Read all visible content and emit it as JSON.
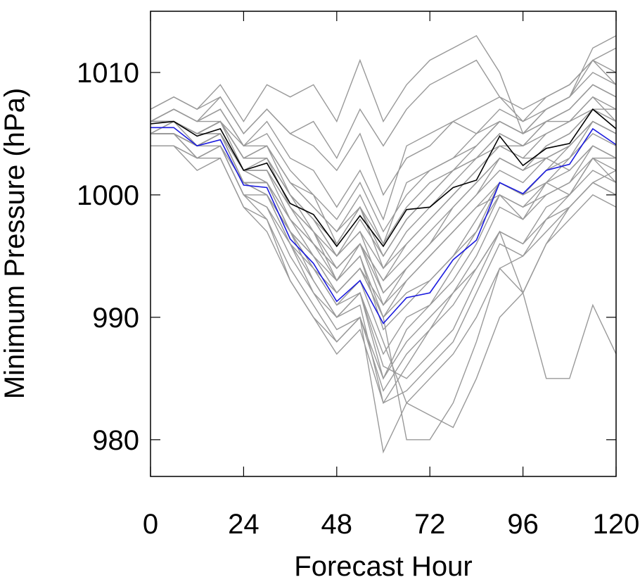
{
  "chart_data": {
    "type": "line",
    "title": "",
    "xlabel": "Forecast Hour",
    "ylabel": "Minimum Pressure (hPa)",
    "xlim": [
      0,
      120
    ],
    "ylim": [
      977,
      1015
    ],
    "x_ticks": [
      0,
      24,
      48,
      72,
      96,
      120
    ],
    "y_ticks": [
      980,
      990,
      1000,
      1010
    ],
    "x_tick_labels": [
      "0",
      "24",
      "48",
      "72",
      "96",
      "120"
    ],
    "y_tick_labels": [
      "980",
      "990",
      "1000",
      "1010"
    ],
    "grid": false,
    "legend": "none",
    "colors": {
      "ensemble": "#999999",
      "black": "#000000",
      "blue": "#1a1adf",
      "axis": "#000000"
    },
    "x": [
      0,
      6,
      12,
      18,
      24,
      30,
      36,
      42,
      48,
      54,
      60,
      66,
      72,
      78,
      84,
      90,
      96,
      102,
      108,
      114,
      120
    ],
    "series": [
      {
        "color": "black",
        "values": [
          1005.8,
          1006.0,
          1004.8,
          1005.4,
          1002.0,
          1002.6,
          999.3,
          998.4,
          995.8,
          998.3,
          995.8,
          998.8,
          999.0,
          1000.6,
          1001.2,
          1004.8,
          1002.4,
          1003.8,
          1004.2,
          1007.0,
          1005.4
        ]
      },
      {
        "color": "blue",
        "values": [
          1005.5,
          1005.5,
          1004.0,
          1004.5,
          1000.8,
          1000.6,
          996.4,
          994.4,
          991.3,
          993.0,
          989.5,
          991.6,
          992.0,
          994.7,
          996.3,
          1001.0,
          1000.1,
          1002.0,
          1002.5,
          1005.4,
          1004.1
        ]
      },
      {
        "color": "ensemble",
        "values": [
          1006,
          1007,
          1006,
          1007,
          1004,
          1006,
          1003,
          1002,
          999,
          1002,
          998,
          1004,
          1005,
          1006,
          1005,
          1007,
          1006,
          1007,
          1008,
          1011,
          1009
        ]
      },
      {
        "color": "ensemble",
        "values": [
          1005,
          1006,
          1005,
          1006,
          1003,
          1004,
          1001,
          999,
          997,
          1000,
          996,
          1001,
          1002,
          1003,
          1004,
          1006,
          1005,
          1006,
          1006,
          1008,
          1007
        ]
      },
      {
        "color": "ensemble",
        "values": [
          1007,
          1008,
          1007,
          1009,
          1006,
          1009,
          1008,
          1009,
          1006,
          1011,
          1006,
          1009,
          1011,
          1012,
          1013,
          1010,
          1005,
          1007,
          1008,
          1012,
          1013
        ]
      },
      {
        "color": "ensemble",
        "values": [
          1006,
          1007,
          1006,
          1008,
          1005,
          1007,
          1005,
          1006,
          1003,
          1007,
          1004,
          1007,
          1009,
          1010,
          1011,
          1008,
          1006,
          1008,
          1009,
          1011,
          1012
        ]
      },
      {
        "color": "ensemble",
        "values": [
          1005,
          1005,
          1004,
          1005,
          1001,
          1001,
          997,
          995,
          992,
          994,
          990,
          992,
          993,
          995,
          997,
          1001,
          1000,
          1002,
          1003,
          1005,
          1004
        ]
      },
      {
        "color": "ensemble",
        "values": [
          1006,
          1006,
          1004,
          1005,
          1002,
          1003,
          999,
          997,
          994,
          996,
          992,
          994,
          996,
          998,
          1000,
          1003,
          1002,
          1004,
          1005,
          1007,
          1006
        ]
      },
      {
        "color": "ensemble",
        "values": [
          1005,
          1005,
          1003,
          1004,
          1000,
          999,
          995,
          992,
          990,
          992,
          987,
          990,
          991,
          993,
          996,
          1000,
          999,
          1001,
          1003,
          1006,
          1005
        ]
      },
      {
        "color": "ensemble",
        "values": [
          1006,
          1006,
          1005,
          1006,
          1003,
          1004,
          1001,
          1000,
          998,
          1001,
          997,
          1000,
          1002,
          1003,
          1005,
          1006,
          1005,
          1006,
          1007,
          1009,
          1008
        ]
      },
      {
        "color": "ensemble",
        "values": [
          1004,
          1004,
          1002,
          1003,
          999,
          998,
          993,
          990,
          987,
          989,
          983,
          986,
          989,
          992,
          995,
          999,
          998,
          1000,
          1001,
          1004,
          1003
        ]
      },
      {
        "color": "ensemble",
        "values": [
          1005,
          1005,
          1003,
          1004,
          1000,
          1000,
          996,
          993,
          990,
          992,
          985,
          988,
          990,
          992,
          994,
          997,
          996,
          998,
          999,
          1001,
          1000
        ]
      },
      {
        "color": "ensemble",
        "values": [
          1006,
          1006,
          1005,
          1006,
          1002,
          1002,
          998,
          996,
          993,
          995,
          990,
          980,
          980,
          983,
          988,
          994,
          995,
          998,
          1000,
          1002,
          1001
        ]
      },
      {
        "color": "ensemble",
        "values": [
          1005,
          1005,
          1004,
          1005,
          1001,
          1000,
          997,
          994,
          991,
          993,
          988,
          983,
          982,
          981,
          985,
          990,
          992,
          996,
          999,
          1001,
          1002
        ]
      },
      {
        "color": "ensemble",
        "values": [
          1006,
          1007,
          1006,
          1007,
          1004,
          1005,
          1002,
          1000,
          996,
          999,
          994,
          997,
          999,
          1001,
          1003,
          1005,
          1004,
          1005,
          1006,
          1008,
          1006
        ]
      },
      {
        "color": "ensemble",
        "values": [
          1005,
          1005,
          1004,
          1005,
          1001,
          1001,
          998,
          996,
          994,
          996,
          993,
          995,
          997,
          999,
          1001,
          1003,
          1002,
          1003,
          1004,
          1006,
          1005
        ]
      },
      {
        "color": "ensemble",
        "values": [
          1007,
          1008,
          1007,
          1008,
          1005,
          1007,
          1005,
          1004,
          1002,
          1005,
          1000,
          1003,
          1004,
          1006,
          1007,
          1008,
          1007,
          1008,
          1009,
          1011,
          1010
        ]
      },
      {
        "color": "ensemble",
        "values": [
          1005,
          1006,
          1005,
          1006,
          1003,
          1003,
          1000,
          998,
          996,
          999,
          995,
          998,
          1000,
          1002,
          1004,
          1006,
          1005,
          1007,
          1008,
          1010,
          1009
        ]
      },
      {
        "color": "ensemble",
        "values": [
          1004,
          1004,
          1003,
          1004,
          1000,
          999,
          996,
          994,
          992,
          994,
          991,
          993,
          995,
          997,
          999,
          1001,
          1000,
          1001,
          1000,
          1003,
          1001
        ]
      },
      {
        "color": "ensemble",
        "values": [
          1006,
          1006,
          1005,
          1006,
          1003,
          1004,
          1000,
          998,
          995,
          997,
          992,
          994,
          996,
          999,
          1001,
          1003,
          1002,
          1004,
          1005,
          1007,
          1006
        ]
      },
      {
        "color": "ensemble",
        "values": [
          1005,
          1005,
          1004,
          1005,
          1002,
          1002,
          999,
          997,
          995,
          997,
          994,
          996,
          998,
          1000,
          1002,
          1004,
          1003,
          1005,
          1006,
          1007,
          1007
        ]
      },
      {
        "color": "ensemble",
        "values": [
          1006,
          1006,
          1005,
          1006,
          1003,
          1003,
          1000,
          997,
          993,
          995,
          989,
          991,
          993,
          995,
          998,
          1001,
          1000,
          1002,
          1004,
          1006,
          1005
        ]
      },
      {
        "color": "ensemble",
        "values": [
          1005,
          1005,
          1004,
          1004,
          1001,
          1000,
          997,
          994,
          991,
          992,
          986,
          985,
          987,
          989,
          993,
          997,
          996,
          999,
          1000,
          1003,
          1003
        ]
      },
      {
        "color": "ensemble",
        "values": [
          1006,
          1007,
          1006,
          1006,
          1004,
          1004,
          1001,
          999,
          997,
          999,
          996,
          999,
          1001,
          1002,
          1003,
          1004,
          1003,
          1003,
          1002,
          1004,
          1003
        ]
      },
      {
        "color": "ensemble",
        "values": [
          1005,
          1006,
          1005,
          1005,
          1002,
          1001,
          998,
          995,
          992,
          994,
          990,
          993,
          995,
          997,
          999,
          1000,
          999,
          1000,
          1001,
          1003,
          1002
        ]
      },
      {
        "color": "ensemble",
        "values": [
          1004,
          1004,
          1003,
          1003,
          999,
          997,
          993,
          990,
          988,
          990,
          984,
          987,
          989,
          991,
          994,
          997,
          992,
          985,
          985,
          991,
          987
        ]
      },
      {
        "color": "ensemble",
        "values": [
          1006,
          1006,
          1005,
          1005,
          1002,
          1001,
          997,
          993,
          990,
          991,
          983,
          984,
          986,
          988,
          992,
          996,
          995,
          997,
          999,
          1001,
          1000
        ]
      },
      {
        "color": "ensemble",
        "values": [
          1005,
          1005,
          1004,
          1005,
          1001,
          1001,
          997,
          995,
          993,
          996,
          993,
          996,
          998,
          1000,
          1002,
          1004,
          1004,
          1006,
          1007,
          1009,
          1008
        ]
      },
      {
        "color": "ensemble",
        "values": [
          1006,
          1006,
          1004,
          1005,
          1001,
          1000,
          996,
          992,
          989,
          990,
          979,
          983,
          985,
          987,
          990,
          994,
          992,
          996,
          998,
          1000,
          999
        ]
      },
      {
        "color": "ensemble",
        "values": [
          1005,
          1005,
          1003,
          1004,
          1000,
          998,
          994,
          991,
          988,
          990,
          985,
          989,
          991,
          994,
          997,
          1000,
          998,
          1001,
          1002,
          1004,
          1003
        ]
      },
      {
        "color": "ensemble",
        "values": [
          1006,
          1006,
          1005,
          1006,
          1003,
          1003,
          1000,
          998,
          995,
          998,
          995,
          998,
          1000,
          1002,
          1003,
          1005,
          1004,
          1006,
          1007,
          1009,
          1008
        ]
      },
      {
        "color": "ensemble",
        "values": [
          1005,
          1005,
          1004,
          1005,
          1002,
          1002,
          999,
          996,
          994,
          996,
          991,
          994,
          996,
          998,
          1000,
          1002,
          1001,
          1003,
          1004,
          1006,
          1005
        ]
      }
    ]
  }
}
